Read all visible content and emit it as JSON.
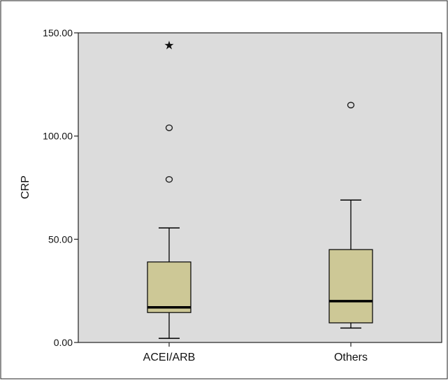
{
  "chart_data": {
    "type": "boxplot",
    "ylabel": "CRP",
    "xlabel": "",
    "ylim": [
      0,
      150
    ],
    "yticks": [
      "0.00",
      "50.00",
      "100.00",
      "150.00"
    ],
    "grid": false,
    "categories": [
      "ACEI/ARB",
      "Others"
    ],
    "boxes": [
      {
        "category": "ACEI/ARB",
        "whisker_low": 2,
        "q1": 14.5,
        "median": 17,
        "q3": 39,
        "whisker_high": 55.5,
        "outliers": [
          79,
          104
        ],
        "extremes": [
          144
        ]
      },
      {
        "category": "Others",
        "whisker_low": 7,
        "q1": 9.5,
        "median": 20,
        "q3": 45,
        "whisker_high": 69,
        "outliers": [
          115
        ],
        "extremes": []
      }
    ],
    "colors": {
      "plot_background": "#dcdcdc",
      "box_fill": "#cdc896",
      "median_line": "#000000",
      "frame": "#222222"
    },
    "markers": {
      "outlier": "circle",
      "extreme": "star"
    }
  }
}
